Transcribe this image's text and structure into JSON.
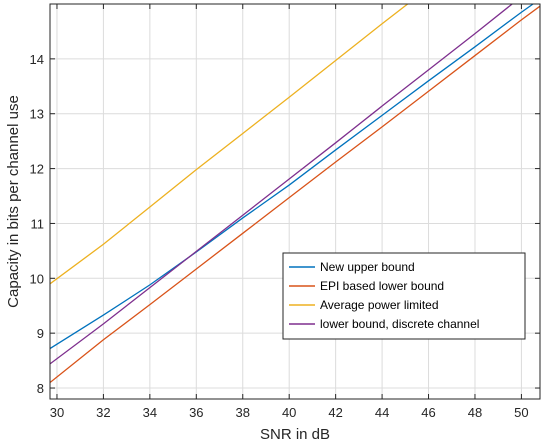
{
  "chart_data": {
    "type": "line",
    "title": "",
    "xlabel": "SNR in dB",
    "ylabel": "Capacity in bits per channel use",
    "xlim": [
      29.7,
      50.8
    ],
    "ylim": [
      7.8,
      15.0
    ],
    "xticks": [
      30,
      32,
      34,
      36,
      38,
      40,
      42,
      44,
      46,
      48,
      50
    ],
    "yticks": [
      8,
      9,
      10,
      11,
      12,
      13,
      14
    ],
    "grid": true,
    "legend_position": "lower-right",
    "series": [
      {
        "name": "New upper bound",
        "color": "#0072BD",
        "x": [
          29.7,
          32,
          34,
          36,
          38,
          40,
          42,
          44,
          46,
          48,
          50,
          50.5
        ],
        "y": [
          8.72,
          9.33,
          9.88,
          10.48,
          11.1,
          11.7,
          12.34,
          12.97,
          13.6,
          14.22,
          14.85,
          15.0
        ]
      },
      {
        "name": "EPI based lower bound",
        "color": "#D95319",
        "x": [
          29.7,
          32,
          34,
          36,
          38,
          40,
          42,
          44,
          46,
          48,
          50,
          50.8
        ],
        "y": [
          8.1,
          8.88,
          9.52,
          10.17,
          10.82,
          11.47,
          12.12,
          12.76,
          13.41,
          14.06,
          14.71,
          14.96
        ]
      },
      {
        "name": "Average power limited",
        "color": "#EDB120",
        "x": [
          29.7,
          32,
          34,
          36,
          38,
          40,
          42,
          44,
          45.1
        ],
        "y": [
          9.9,
          10.62,
          11.3,
          11.98,
          12.64,
          13.3,
          13.97,
          14.64,
          15.0
        ]
      },
      {
        "name": "lower bound, discrete channel",
        "color": "#7E2F8E",
        "x": [
          29.7,
          32,
          34,
          36,
          38,
          40,
          42,
          44,
          46,
          48,
          49.6
        ],
        "y": [
          8.44,
          9.17,
          9.83,
          10.49,
          11.15,
          11.81,
          12.47,
          13.14,
          13.8,
          14.46,
          15.0
        ]
      }
    ]
  }
}
